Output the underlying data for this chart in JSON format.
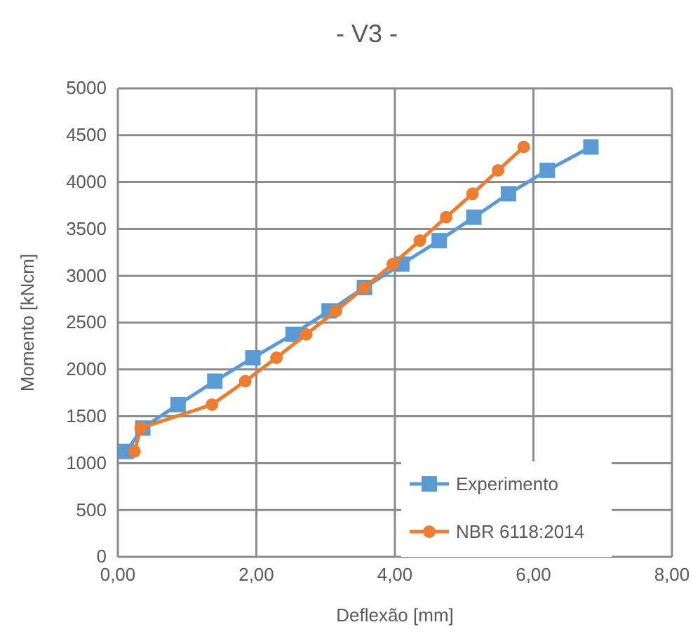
{
  "chart_data": {
    "type": "line",
    "title": "- V3 -",
    "xlabel": "Deflexão [mm]",
    "ylabel": "Momento [kNcm]",
    "xlim": [
      0,
      8
    ],
    "xticks": [
      {
        "value": 0,
        "label": "0,00"
      },
      {
        "value": 2,
        "label": "2,00"
      },
      {
        "value": 4,
        "label": "4,00"
      },
      {
        "value": 6,
        "label": "6,00"
      },
      {
        "value": 8,
        "label": "8,00"
      }
    ],
    "ylim": [
      0,
      5000
    ],
    "yticks": [
      0,
      500,
      1000,
      1500,
      2000,
      2500,
      3000,
      3500,
      4000,
      4500,
      5000
    ],
    "grid": true,
    "legend": "bottom right",
    "series": [
      {
        "name": "Experimento",
        "color": "#5b9bd5",
        "marker": "square",
        "x": [
          0.12,
          0.36,
          0.87,
          1.4,
          1.95,
          2.53,
          3.05,
          3.56,
          4.1,
          4.64,
          5.14,
          5.64,
          6.2,
          6.83
        ],
        "values": [
          1125,
          1375,
          1625,
          1875,
          2125,
          2375,
          2625,
          2875,
          3125,
          3375,
          3625,
          3875,
          4125,
          4375
        ]
      },
      {
        "name": "NBR 6118:2014",
        "color": "#ed7d31",
        "marker": "circle",
        "x": [
          0.24,
          0.33,
          1.36,
          1.84,
          2.29,
          2.72,
          3.15,
          3.56,
          3.97,
          4.36,
          4.74,
          5.12,
          5.49,
          5.86
        ],
        "values": [
          1125,
          1375,
          1625,
          1875,
          2125,
          2375,
          2625,
          2875,
          3125,
          3375,
          3625,
          3875,
          4125,
          4375
        ]
      }
    ]
  }
}
